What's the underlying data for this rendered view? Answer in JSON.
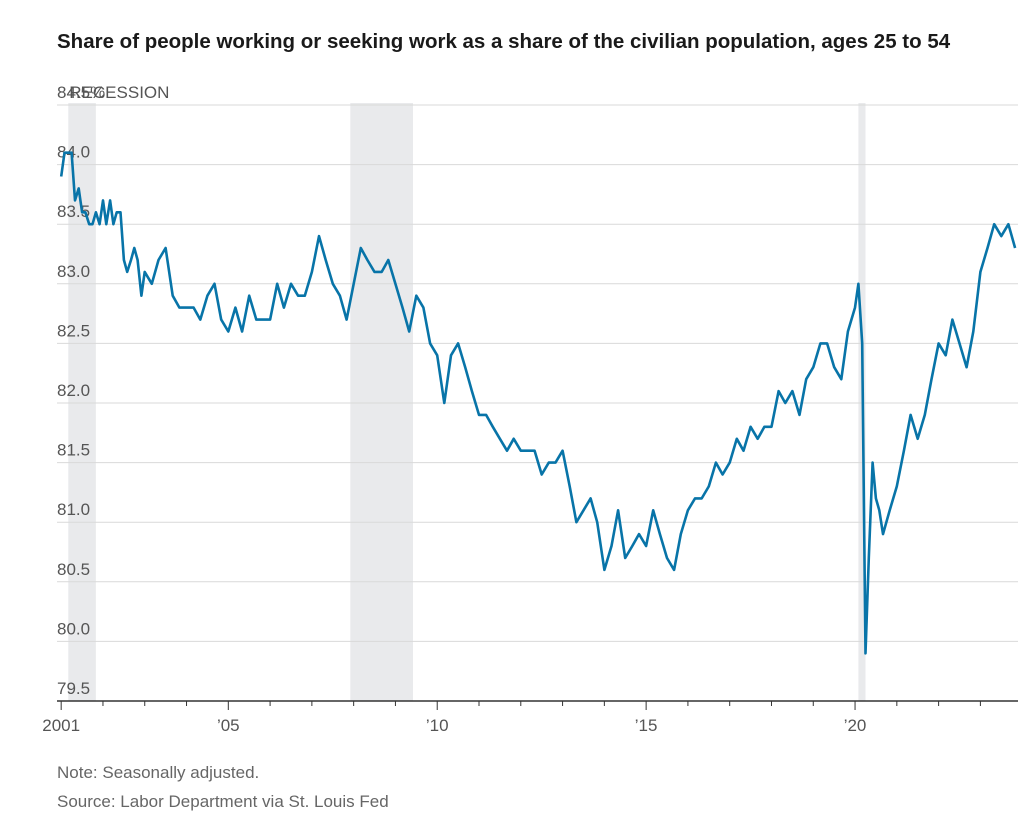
{
  "title": "Share of people working or seeking work as a share of the civilian population, ages 25 to 54",
  "note": "Note: Seasonally adjusted.",
  "source": "Source: Labor Department via St. Louis Fed",
  "recession_label": "RECESSION",
  "colors": {
    "line": "#0874a8",
    "recession": "#e9eaec",
    "grid": "#d9d9d9",
    "axis": "#333333"
  },
  "chart_data": {
    "type": "line",
    "title": "Share of people working or seeking work as a share of the civilian population, ages 25 to 54",
    "xlabel": "",
    "ylabel": "",
    "ylim": [
      79.5,
      84.5
    ],
    "xlim": [
      2000.9,
      2023.9
    ],
    "y_ticks": [
      79.5,
      80.0,
      80.5,
      81.0,
      81.5,
      82.0,
      82.5,
      83.0,
      83.5,
      84.0,
      84.5
    ],
    "y_tick_labels": [
      "79.5",
      "80.0",
      "80.5",
      "81.0",
      "81.5",
      "82.0",
      "82.5",
      "83.0",
      "83.5",
      "84.0",
      "84.5%"
    ],
    "x_ticks": [
      2001,
      2005,
      2010,
      2015,
      2020
    ],
    "x_tick_labels": [
      "2001",
      "’05",
      "’10",
      "’15",
      "’20"
    ],
    "grid": true,
    "recessions": [
      [
        2001.17,
        2001.83
      ],
      [
        2007.92,
        2009.42
      ],
      [
        2020.08,
        2020.25
      ]
    ],
    "series": [
      {
        "x": [
          2001.0,
          2001.08,
          2001.17,
          2001.25,
          2001.33,
          2001.42,
          2001.5,
          2001.58,
          2001.67,
          2001.75,
          2001.83,
          2001.92,
          2002.0,
          2002.08,
          2002.17,
          2002.25,
          2002.33,
          2002.42,
          2002.5,
          2002.58,
          2002.67,
          2002.75,
          2002.83,
          2002.92,
          2003.0,
          2003.17,
          2003.33,
          2003.5,
          2003.67,
          2003.83,
          2004.0,
          2004.17,
          2004.33,
          2004.5,
          2004.67,
          2004.83,
          2005.0,
          2005.17,
          2005.33,
          2005.5,
          2005.67,
          2005.83,
          2006.0,
          2006.17,
          2006.33,
          2006.5,
          2006.67,
          2006.83,
          2007.0,
          2007.17,
          2007.33,
          2007.5,
          2007.67,
          2007.83,
          2008.0,
          2008.17,
          2008.33,
          2008.5,
          2008.67,
          2008.83,
          2009.0,
          2009.17,
          2009.33,
          2009.5,
          2009.67,
          2009.83,
          2010.0,
          2010.17,
          2010.33,
          2010.5,
          2010.67,
          2010.83,
          2011.0,
          2011.17,
          2011.33,
          2011.5,
          2011.67,
          2011.83,
          2012.0,
          2012.17,
          2012.33,
          2012.5,
          2012.67,
          2012.83,
          2013.0,
          2013.17,
          2013.33,
          2013.5,
          2013.67,
          2013.83,
          2014.0,
          2014.17,
          2014.33,
          2014.5,
          2014.67,
          2014.83,
          2015.0,
          2015.17,
          2015.33,
          2015.5,
          2015.67,
          2015.83,
          2016.0,
          2016.17,
          2016.33,
          2016.5,
          2016.67,
          2016.83,
          2017.0,
          2017.17,
          2017.33,
          2017.5,
          2017.67,
          2017.83,
          2018.0,
          2018.17,
          2018.33,
          2018.5,
          2018.67,
          2018.83,
          2019.0,
          2019.17,
          2019.33,
          2019.5,
          2019.67,
          2019.83,
          2020.0,
          2020.08,
          2020.17,
          2020.25,
          2020.33,
          2020.42,
          2020.5,
          2020.58,
          2020.67,
          2020.83,
          2021.0,
          2021.17,
          2021.33,
          2021.5,
          2021.67,
          2021.83,
          2022.0,
          2022.17,
          2022.33,
          2022.5,
          2022.67,
          2022.83,
          2023.0,
          2023.17,
          2023.33,
          2023.5,
          2023.67,
          2023.83
        ],
        "values": [
          83.9,
          84.1,
          84.1,
          84.1,
          83.7,
          83.8,
          83.6,
          83.6,
          83.5,
          83.5,
          83.6,
          83.5,
          83.7,
          83.5,
          83.7,
          83.5,
          83.6,
          83.6,
          83.2,
          83.1,
          83.2,
          83.3,
          83.2,
          82.9,
          83.1,
          83.0,
          83.2,
          83.3,
          82.9,
          82.8,
          82.8,
          82.8,
          82.7,
          82.9,
          83.0,
          82.7,
          82.6,
          82.8,
          82.6,
          82.9,
          82.7,
          82.7,
          82.7,
          83.0,
          82.8,
          83.0,
          82.9,
          82.9,
          83.1,
          83.4,
          83.2,
          83.0,
          82.9,
          82.7,
          83.0,
          83.3,
          83.2,
          83.1,
          83.1,
          83.2,
          83.0,
          82.8,
          82.6,
          82.9,
          82.8,
          82.5,
          82.4,
          82.0,
          82.4,
          82.5,
          82.3,
          82.1,
          81.9,
          81.9,
          81.8,
          81.7,
          81.6,
          81.7,
          81.6,
          81.6,
          81.6,
          81.4,
          81.5,
          81.5,
          81.6,
          81.3,
          81.0,
          81.1,
          81.2,
          81.0,
          80.6,
          80.8,
          81.1,
          80.7,
          80.8,
          80.9,
          80.8,
          81.1,
          80.9,
          80.7,
          80.6,
          80.9,
          81.1,
          81.2,
          81.2,
          81.3,
          81.5,
          81.4,
          81.5,
          81.7,
          81.6,
          81.8,
          81.7,
          81.8,
          81.8,
          82.1,
          82.0,
          82.1,
          81.9,
          82.2,
          82.3,
          82.5,
          82.5,
          82.3,
          82.2,
          82.6,
          82.8,
          83.0,
          82.5,
          79.9,
          80.7,
          81.5,
          81.2,
          81.1,
          80.9,
          81.1,
          81.3,
          81.6,
          81.9,
          81.7,
          81.9,
          82.2,
          82.5,
          82.4,
          82.7,
          82.5,
          82.3,
          82.6,
          83.1,
          83.3,
          83.5,
          83.4,
          83.5,
          83.3
        ]
      }
    ]
  }
}
